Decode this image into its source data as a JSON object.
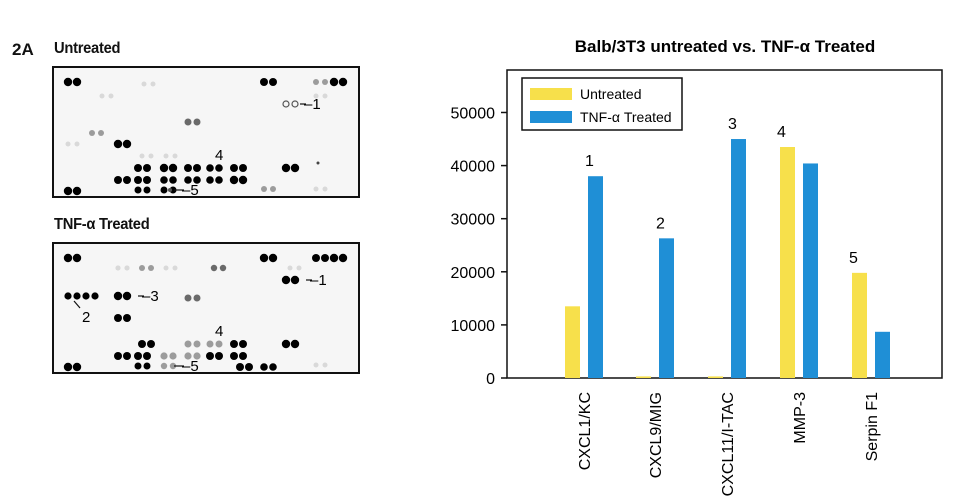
{
  "figure_label": "2A",
  "blots": [
    {
      "title": "Untreated",
      "callouts": [
        {
          "label": "–1"
        },
        {
          "label": "4"
        },
        {
          "label": "–5"
        }
      ]
    },
    {
      "title": "TNF-α Treated",
      "callouts": [
        {
          "label": "–1"
        },
        {
          "label": "2"
        },
        {
          "label": "–3"
        },
        {
          "label": "4"
        },
        {
          "label": "–5"
        }
      ]
    }
  ],
  "chart_data": {
    "type": "bar",
    "title": "Balb/3T3 untreated vs. TNF-α Treated",
    "categories": [
      "CXCL1/KC",
      "CXCL9/MIG",
      "CXCL11/I-TAC",
      "MMP-3",
      "Serpin F1"
    ],
    "series": [
      {
        "name": "Untreated",
        "color": "#f7e04b",
        "values": [
          13500,
          300,
          300,
          43500,
          19800
        ]
      },
      {
        "name": "TNF-α Treated",
        "color": "#1f8fd6",
        "values": [
          38000,
          26300,
          45000,
          40400,
          8700
        ]
      }
    ],
    "bar_labels": [
      "1",
      "2",
      "3",
      "4",
      "5"
    ],
    "yticks": [
      0,
      10000,
      20000,
      30000,
      40000,
      50000
    ],
    "ylim": [
      0,
      58000
    ],
    "xlabel": "",
    "ylabel": "",
    "legend_position": "top-left",
    "grid": false
  }
}
